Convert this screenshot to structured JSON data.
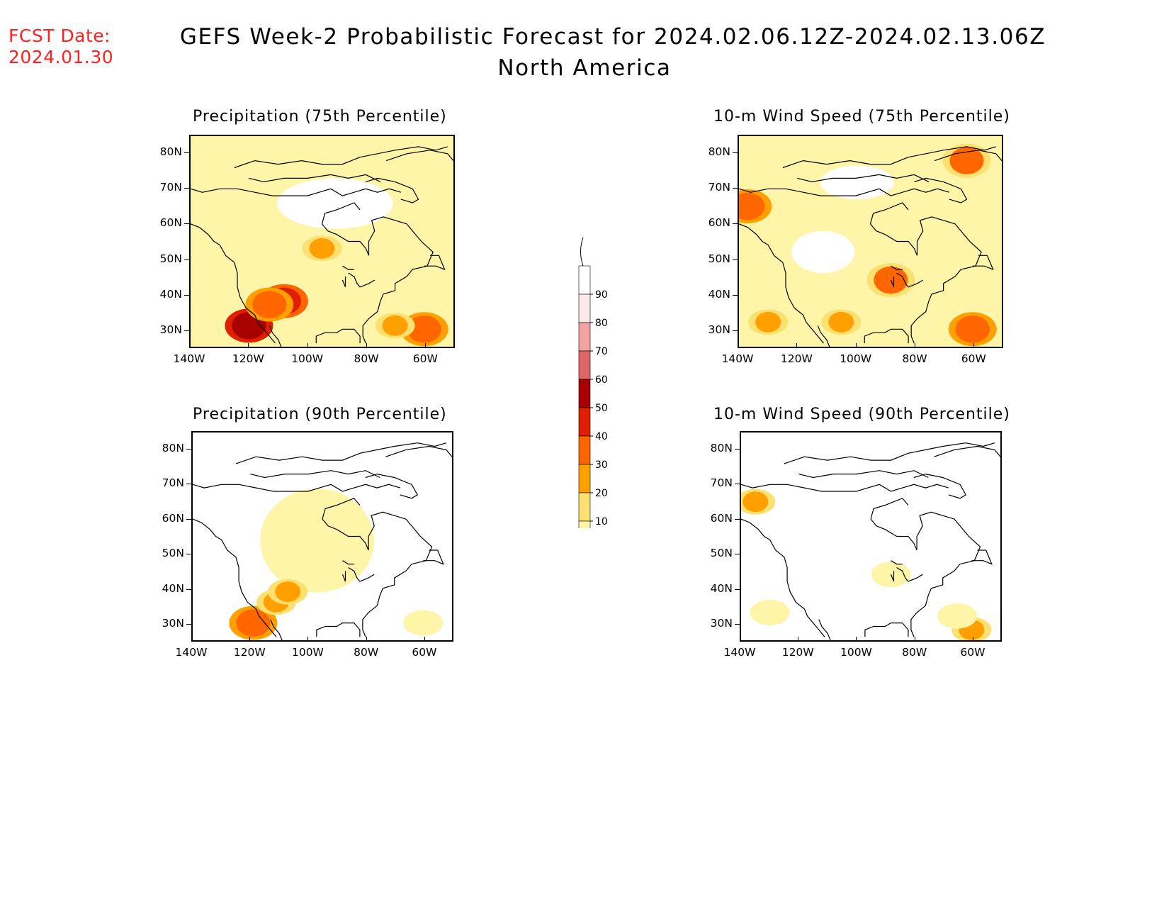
{
  "header": {
    "fcst_label_line1": "FCST Date:",
    "fcst_label_line2": "2024.01.30",
    "title_line1": "GEFS Week-2 Probabilistic Forecast for 2024.02.06.12Z-2024.02.13.06Z",
    "title_line2": "North America"
  },
  "panels": [
    {
      "title": "Precipitation (75th Percentile)"
    },
    {
      "title": "10-m Wind Speed (75th Percentile)"
    },
    {
      "title": "Precipitation (90th Percentile)"
    },
    {
      "title": "10-m Wind Speed (90th Percentile)"
    }
  ],
  "axes": {
    "lat_labels": [
      "80N",
      "70N",
      "60N",
      "50N",
      "40N",
      "30N"
    ],
    "lon_labels": [
      "140W",
      "120W",
      "100W",
      "80W",
      "60W"
    ]
  },
  "colorbar": {
    "labels": [
      "90",
      "80",
      "70",
      "60",
      "50",
      "40",
      "30",
      "20",
      "10"
    ],
    "colors": [
      "#ffffff",
      "#fde8e8",
      "#f4a3a3",
      "#e06666",
      "#a80000",
      "#e01e00",
      "#ff6600",
      "#ffa000",
      "#fde070",
      "#fff5a8"
    ]
  },
  "chart_data": [
    {
      "type": "heatmap",
      "title": "Precipitation (75th Percentile)",
      "region": "North America",
      "lon_range": [
        -140,
        -50
      ],
      "lat_range": [
        25,
        85
      ],
      "levels": [
        10,
        20,
        30,
        40,
        50,
        60,
        70,
        80,
        90
      ],
      "features": [
        {
          "lon": -120,
          "lat": 31,
          "value": 65
        },
        {
          "lon": -108,
          "lat": 38,
          "value": 55
        },
        {
          "lon": -113,
          "lat": 37,
          "value": 45
        },
        {
          "lon": -95,
          "lat": 53,
          "value": 35
        },
        {
          "lon": -60,
          "lat": 30,
          "value": 45
        },
        {
          "lon": -70,
          "lat": 31,
          "value": 35
        }
      ]
    },
    {
      "type": "heatmap",
      "title": "10-m Wind Speed (75th Percentile)",
      "region": "North America",
      "lon_range": [
        -140,
        -50
      ],
      "lat_range": [
        25,
        85
      ],
      "levels": [
        10,
        20,
        30,
        40,
        50,
        60,
        70,
        80,
        90
      ],
      "features": [
        {
          "lon": -137,
          "lat": 65,
          "value": 45
        },
        {
          "lon": -62,
          "lat": 78,
          "value": 40
        },
        {
          "lon": -60,
          "lat": 30,
          "value": 45
        },
        {
          "lon": -130,
          "lat": 32,
          "value": 35
        },
        {
          "lon": -105,
          "lat": 32,
          "value": 35
        },
        {
          "lon": -88,
          "lat": 44,
          "value": 40
        }
      ]
    },
    {
      "type": "heatmap",
      "title": "Precipitation (90th Percentile)",
      "region": "North America",
      "lon_range": [
        -140,
        -50
      ],
      "lat_range": [
        25,
        85
      ],
      "levels": [
        10,
        20,
        30,
        40,
        50,
        60,
        70,
        80,
        90
      ],
      "features": [
        {
          "lon": -119,
          "lat": 30,
          "value": 45
        },
        {
          "lon": -111,
          "lat": 36,
          "value": 35
        },
        {
          "lon": -107,
          "lat": 39,
          "value": 35
        },
        {
          "lon": -95,
          "lat": 55,
          "value": 15
        },
        {
          "lon": -60,
          "lat": 30,
          "value": 15
        }
      ]
    },
    {
      "type": "heatmap",
      "title": "10-m Wind Speed (90th Percentile)",
      "region": "North America",
      "lon_range": [
        -140,
        -50
      ],
      "lat_range": [
        25,
        85
      ],
      "levels": [
        10,
        20,
        30,
        40,
        50,
        60,
        70,
        80,
        90
      ],
      "features": [
        {
          "lon": -135,
          "lat": 65,
          "value": 35
        },
        {
          "lon": -60,
          "lat": 28,
          "value": 35
        },
        {
          "lon": -130,
          "lat": 33,
          "value": 15
        },
        {
          "lon": -88,
          "lat": 44,
          "value": 15
        },
        {
          "lon": -65,
          "lat": 32,
          "value": 15
        }
      ]
    }
  ]
}
